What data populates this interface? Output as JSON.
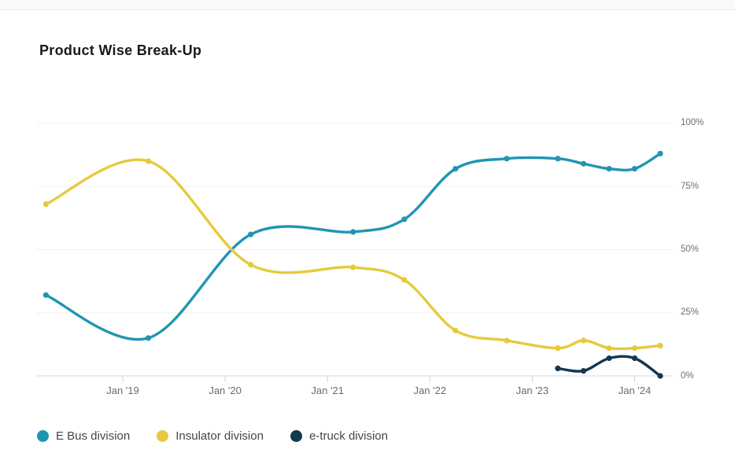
{
  "chart_data": {
    "type": "line",
    "title": "Product Wise Break-Up",
    "ylabel": "",
    "xlabel": "",
    "ylim": [
      0,
      100
    ],
    "grid": true,
    "legend_position": "bottom-left",
    "y_tick_labels": [
      "100%",
      "75%",
      "50%",
      "25%",
      "0%"
    ],
    "y_tick_values": [
      100,
      75,
      50,
      25,
      0
    ],
    "x_tick_labels": [
      "Jan '19",
      "Jan '20",
      "Jan '21",
      "Jan '22",
      "Jan '23",
      "Jan '24"
    ],
    "periods": [
      "Mar '18",
      "Mar '19",
      "Mar '20",
      "Mar '21",
      "Sep '21",
      "Mar '22",
      "Sep '22",
      "Mar '23",
      "Jun '23",
      "Sep '23",
      "Dec '23",
      "Mar '24"
    ],
    "unit": "%",
    "series": [
      {
        "name": "E Bus division",
        "color": "#2095b3",
        "values": [
          32,
          15,
          56,
          57,
          62,
          82,
          86,
          86,
          84,
          82,
          82,
          88
        ]
      },
      {
        "name": "Insulator division",
        "color": "#e7ca3c",
        "values": [
          68,
          85,
          44,
          43,
          38,
          18,
          14,
          11,
          14,
          11,
          11,
          12
        ]
      },
      {
        "name": "e-truck division",
        "color": "#14384f",
        "values": [
          null,
          null,
          null,
          null,
          null,
          null,
          null,
          3,
          2,
          7,
          7,
          0
        ]
      }
    ]
  },
  "style_colors": {
    "gridline": "#eef0f2",
    "axis_line": "#cfd9df",
    "tick_mark": "#c9d3da"
  }
}
